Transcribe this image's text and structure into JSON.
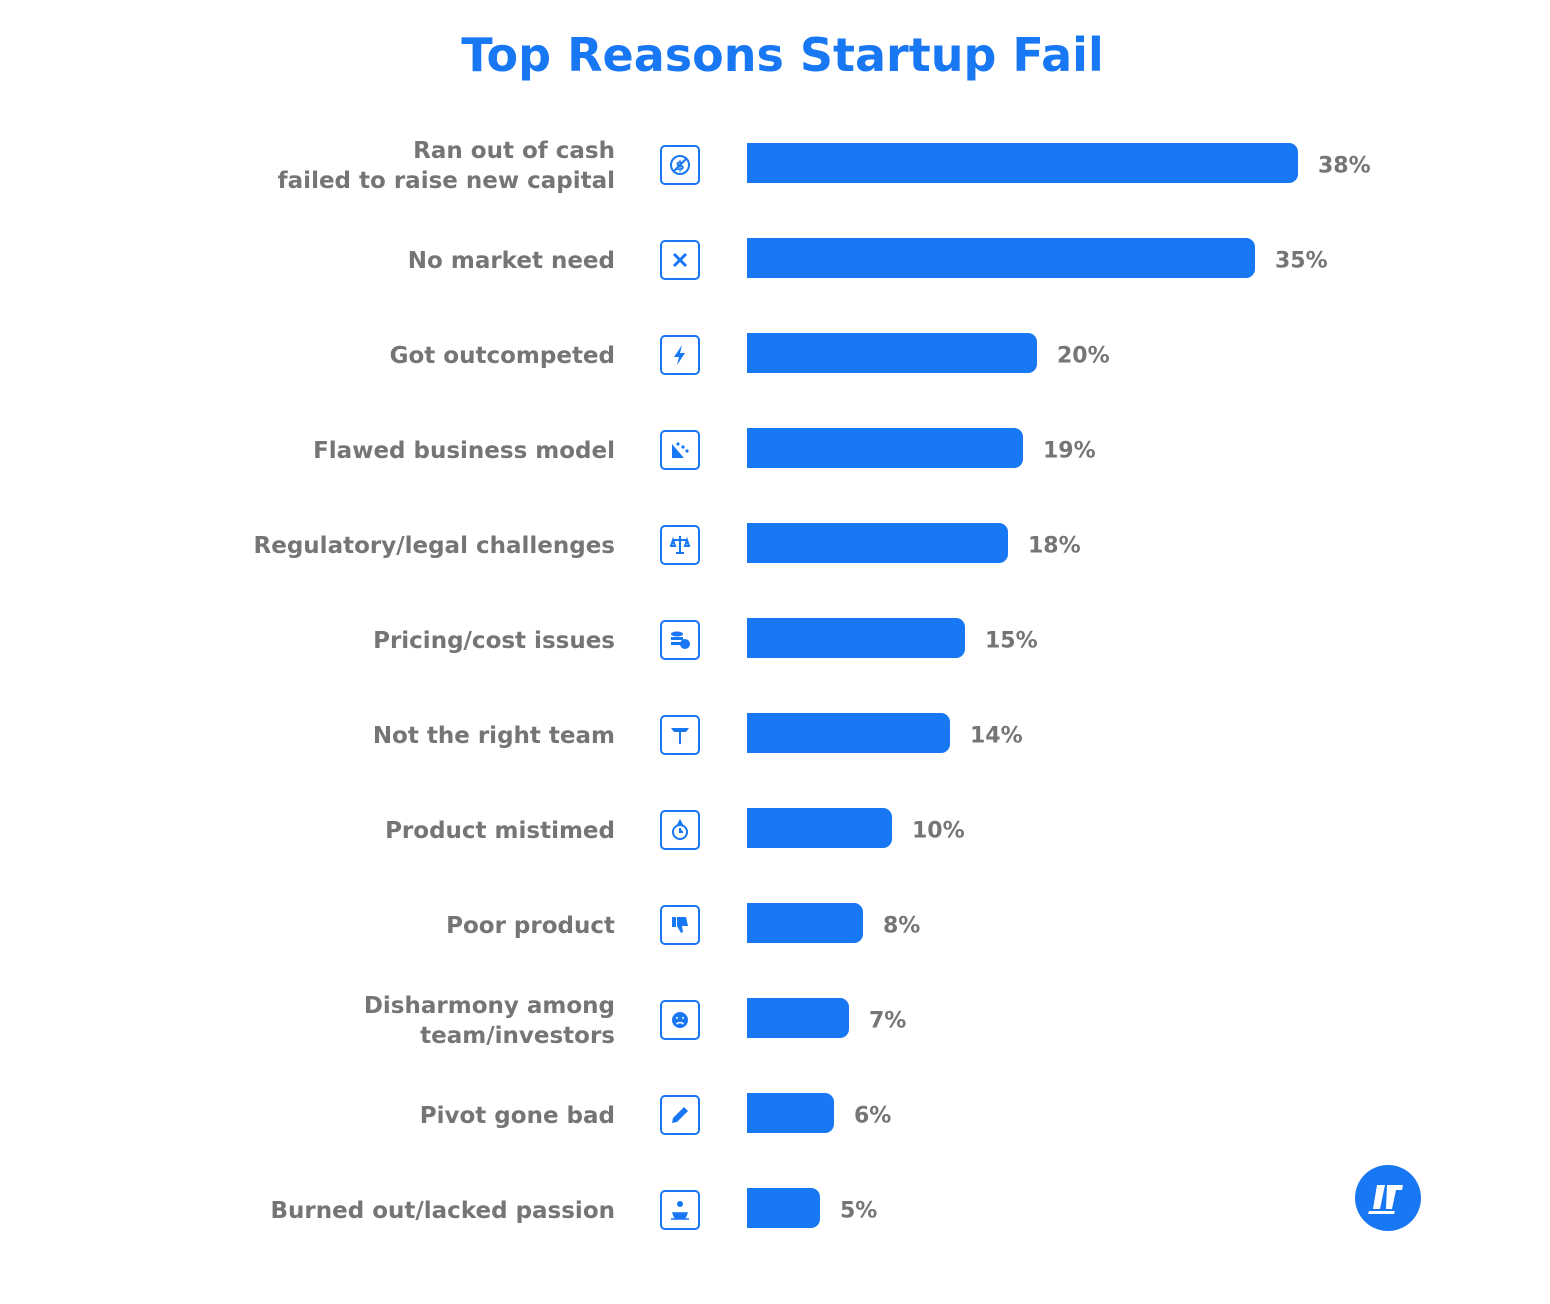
{
  "chart_data": {
    "type": "bar",
    "orientation": "horizontal",
    "title": "Top Reasons Startup Fail",
    "categories": [
      "Ran out of cash\nfailed to raise new capital",
      "No market need",
      "Got outcompeted",
      "Flawed business model",
      "Regulatory/legal challenges",
      "Pricing/cost issues",
      "Not the right team",
      "Product mistimed",
      "Poor product",
      "Disharmony among\nteam/investors",
      "Pivot gone bad",
      "Burned out/lacked passion"
    ],
    "values": [
      38,
      35,
      20,
      19,
      18,
      15,
      14,
      10,
      8,
      7,
      6,
      5
    ],
    "value_labels": [
      "38%",
      "35%",
      "20%",
      "19%",
      "18%",
      "15%",
      "14%",
      "10%",
      "8%",
      "7%",
      "6%",
      "5%"
    ],
    "icons": [
      "no-money-icon",
      "x-mark-icon",
      "lightning-icon",
      "landslide-icon",
      "scales-icon",
      "coins-icon",
      "signpost-icon",
      "stopwatch-icon",
      "thumbs-down-icon",
      "sad-face-icon",
      "pencil-icon",
      "burnout-icon"
    ],
    "xlabel": "",
    "ylabel": "",
    "grid": false,
    "colors": {
      "bar": "#1877f2",
      "title": "#1877f2",
      "text": "#757575"
    }
  },
  "logo": {
    "icon": "brand-logo-icon",
    "color": "#1877f2"
  }
}
